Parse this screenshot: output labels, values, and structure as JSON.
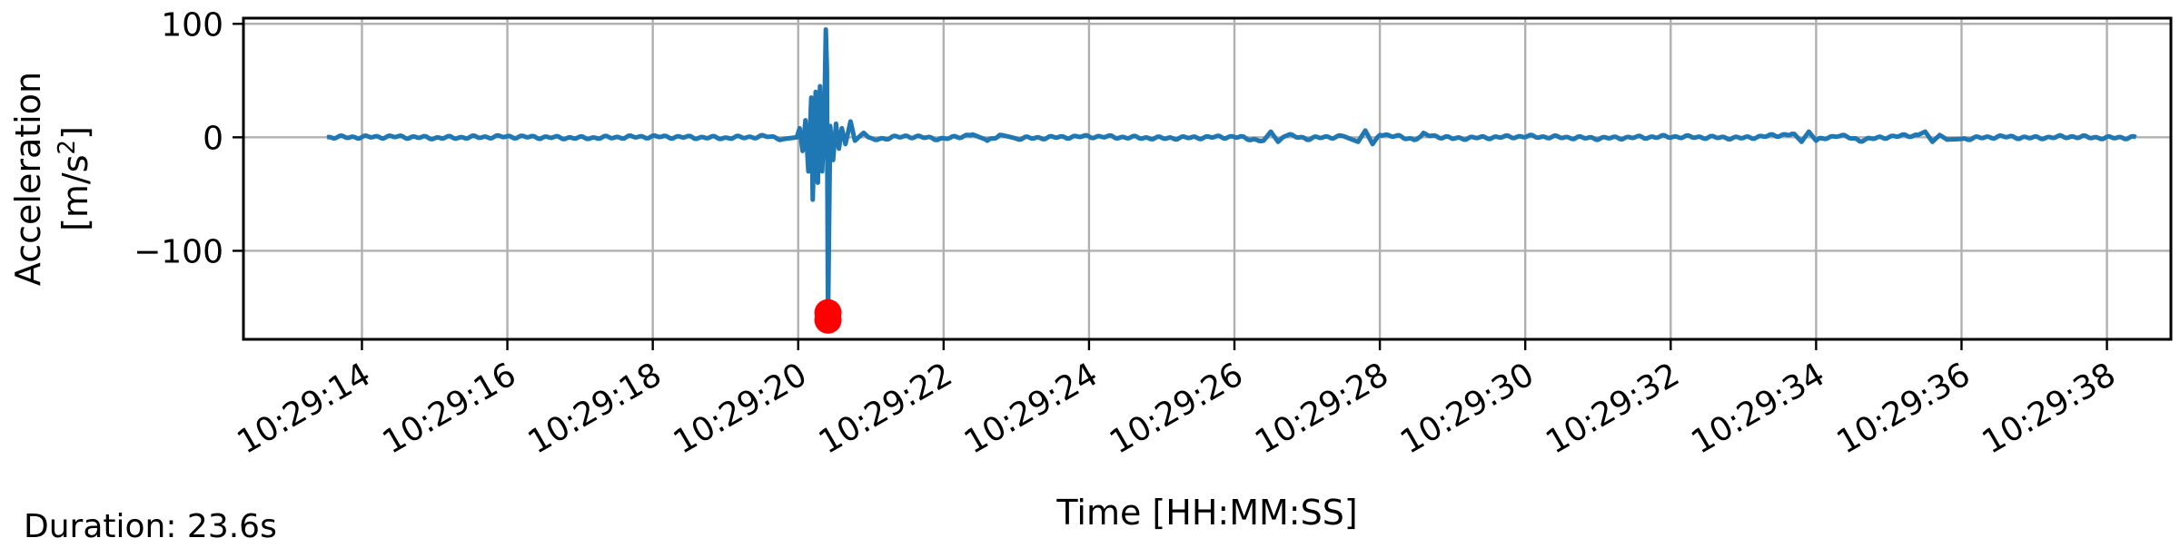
{
  "chart_data": {
    "type": "line",
    "title": "",
    "xlabel": "Time [HH:MM:SS]",
    "ylabel_line1": "Acceleration",
    "ylabel_unit": "[m/s",
    "ylabel_unit_exp": "2",
    "ylabel_unit_close": "]",
    "ylim": [
      -178,
      105
    ],
    "xlim_seconds": [
      -1.63,
      24.88
    ],
    "grid": true,
    "time_origin": "10:29:14",
    "x_ticks": [
      {
        "label": "10:29:14",
        "seconds": 0
      },
      {
        "label": "10:29:16",
        "seconds": 2
      },
      {
        "label": "10:29:18",
        "seconds": 4
      },
      {
        "label": "10:29:20",
        "seconds": 6
      },
      {
        "label": "10:29:22",
        "seconds": 8
      },
      {
        "label": "10:29:24",
        "seconds": 10
      },
      {
        "label": "10:29:26",
        "seconds": 12
      },
      {
        "label": "10:29:28",
        "seconds": 14
      },
      {
        "label": "10:29:30",
        "seconds": 16
      },
      {
        "label": "10:29:32",
        "seconds": 18
      },
      {
        "label": "10:29:34",
        "seconds": 20
      },
      {
        "label": "10:29:36",
        "seconds": 22
      },
      {
        "label": "10:29:38",
        "seconds": 24
      }
    ],
    "y_ticks": [
      {
        "label": "100",
        "value": 100
      },
      {
        "label": "0",
        "value": 0
      },
      {
        "label": "−100",
        "value": -100
      }
    ],
    "series": [
      {
        "color": "#1f77b4",
        "points": [
          [
            -0.48,
            0
          ],
          [
            0.5,
            0.5
          ],
          [
            1.0,
            -0.5
          ],
          [
            2.0,
            0.6
          ],
          [
            3.0,
            -0.6
          ],
          [
            4.0,
            0.6
          ],
          [
            5.0,
            -0.5
          ],
          [
            5.6,
            0.8
          ],
          [
            5.8,
            -1.5
          ],
          [
            5.98,
            0
          ],
          [
            6.02,
            8
          ],
          [
            6.06,
            -12
          ],
          [
            6.1,
            15
          ],
          [
            6.14,
            -30
          ],
          [
            6.18,
            35
          ],
          [
            6.2,
            -55
          ],
          [
            6.24,
            40
          ],
          [
            6.27,
            -40
          ],
          [
            6.3,
            45
          ],
          [
            6.33,
            -30
          ],
          [
            6.36,
            20
          ],
          [
            6.38,
            95
          ],
          [
            6.395,
            60
          ],
          [
            6.41,
            -165
          ],
          [
            6.44,
            10
          ],
          [
            6.48,
            -20
          ],
          [
            6.52,
            12
          ],
          [
            6.56,
            -10
          ],
          [
            6.6,
            8
          ],
          [
            6.65,
            -6
          ],
          [
            6.72,
            14
          ],
          [
            6.78,
            -3
          ],
          [
            6.9,
            4
          ],
          [
            7.0,
            -2
          ],
          [
            7.5,
            1
          ],
          [
            8.0,
            -1.5
          ],
          [
            8.4,
            2.5
          ],
          [
            8.6,
            -2.5
          ],
          [
            8.8,
            2
          ],
          [
            9.0,
            -1
          ],
          [
            10.0,
            0.8
          ],
          [
            11.0,
            -0.8
          ],
          [
            12.0,
            0.5
          ],
          [
            12.4,
            -3
          ],
          [
            12.5,
            5
          ],
          [
            12.6,
            -4
          ],
          [
            12.7,
            2
          ],
          [
            13.0,
            -1
          ],
          [
            13.5,
            1
          ],
          [
            13.7,
            -4
          ],
          [
            13.8,
            6
          ],
          [
            13.9,
            -6
          ],
          [
            14.0,
            3
          ],
          [
            14.5,
            -2
          ],
          [
            14.6,
            2.5
          ],
          [
            15.0,
            -1
          ],
          [
            16.0,
            0.8
          ],
          [
            17.0,
            -0.8
          ],
          [
            18.0,
            0.6
          ],
          [
            19.0,
            -0.6
          ],
          [
            19.7,
            3
          ],
          [
            19.8,
            -4
          ],
          [
            19.9,
            5
          ],
          [
            20.0,
            -3
          ],
          [
            20.3,
            2
          ],
          [
            20.6,
            -2.5
          ],
          [
            21.0,
            0.5
          ],
          [
            21.4,
            2
          ],
          [
            21.5,
            5
          ],
          [
            21.6,
            -4
          ],
          [
            21.7,
            2
          ],
          [
            21.8,
            -2
          ],
          [
            22.0,
            -1.5
          ],
          [
            22.5,
            0.6
          ],
          [
            23.0,
            -0.5
          ],
          [
            23.5,
            0.6
          ],
          [
            24.0,
            -0.5
          ],
          [
            24.4,
            0
          ]
        ]
      }
    ],
    "marker": {
      "seconds": 6.41,
      "value": -161,
      "color": "#ff0000"
    }
  },
  "footer": {
    "duration": "Duration: 23.6s"
  }
}
